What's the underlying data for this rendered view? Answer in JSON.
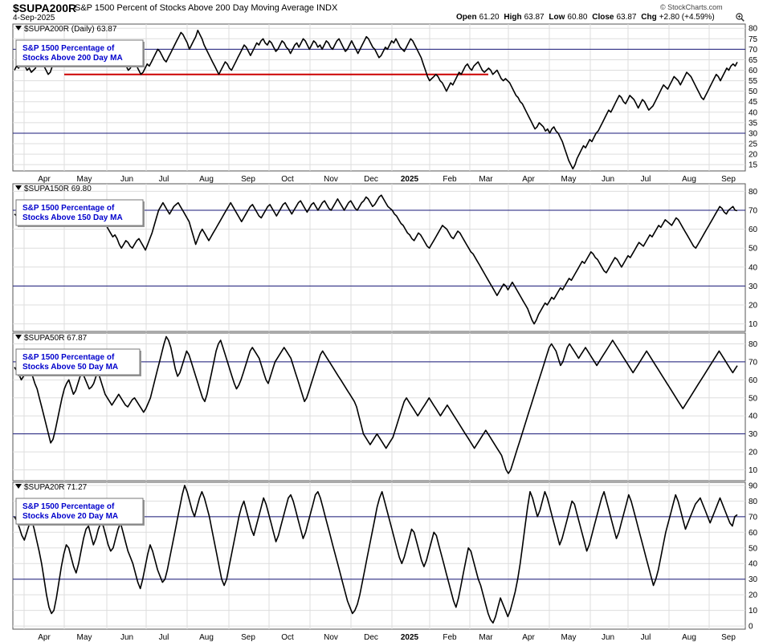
{
  "header": {
    "symbol": "$SUPA200R",
    "description": "S&P 1500 Percent of Stocks Above 200 Day Moving Average INDX",
    "date": "4-Sep-2025",
    "watermark": "© StockCharts.com",
    "open_label": "Open",
    "open": "61.20",
    "high_label": "High",
    "high": "63.87",
    "low_label": "Low",
    "low": "60.80",
    "close_label": "Close",
    "close": "63.87",
    "chg_label": "Chg",
    "chg": "+2.80 (+4.59%)",
    "zoom_icon": "magnifier-plus-icon"
  },
  "colors": {
    "line": "#000000",
    "ref": "#1a1a7a",
    "support": "#cc0000",
    "box_text": "#0000cc",
    "grid": "#dddddd"
  },
  "x_axis": {
    "labels": [
      "Apr",
      "May",
      "Jun",
      "Jul",
      "Aug",
      "Sep",
      "Oct",
      "Nov",
      "Dec",
      "2025",
      "Feb",
      "Mar",
      "Apr",
      "May",
      "Jun",
      "Jul",
      "Aug",
      "Sep"
    ],
    "bold": [
      false,
      false,
      false,
      false,
      false,
      false,
      false,
      false,
      false,
      true,
      false,
      false,
      false,
      false,
      false,
      false,
      false,
      false
    ]
  },
  "chart_data": [
    {
      "type": "line",
      "legend": "$SUPA200R (Daily) 63.87",
      "box": [
        "S&P 1500 Percentage of",
        "Stocks Above 200 Day MA"
      ],
      "ylim": [
        12,
        82
      ],
      "yticks": [
        15,
        20,
        25,
        30,
        35,
        40,
        45,
        50,
        55,
        60,
        65,
        70,
        75,
        80
      ],
      "ref_lines": [
        70,
        30
      ],
      "support_line": {
        "value": 58,
        "from": "May",
        "to": "Mar"
      },
      "y": [
        60,
        62,
        61,
        63,
        64,
        62,
        60,
        61,
        59,
        60,
        61,
        64,
        63,
        65,
        62,
        60,
        58,
        59,
        62,
        64,
        63,
        65,
        66,
        68,
        70,
        67,
        65,
        66,
        68,
        70,
        72,
        70,
        68,
        66,
        64,
        65,
        67,
        69,
        70,
        68,
        66,
        64,
        62,
        63,
        65,
        64,
        66,
        68,
        69,
        70,
        67,
        65,
        63,
        62,
        60,
        61,
        63,
        64,
        62,
        60,
        58,
        59,
        61,
        63,
        62,
        64,
        66,
        68,
        70,
        69,
        67,
        65,
        64,
        66,
        68,
        70,
        72,
        74,
        76,
        78,
        77,
        75,
        73,
        70,
        72,
        74,
        76,
        79,
        77,
        75,
        72,
        70,
        68,
        66,
        64,
        62,
        60,
        58,
        60,
        62,
        64,
        63,
        61,
        60,
        62,
        64,
        66,
        68,
        70,
        72,
        71,
        69,
        67,
        69,
        71,
        73,
        72,
        74,
        75,
        73,
        72,
        74,
        73,
        71,
        69,
        70,
        72,
        74,
        73,
        71,
        70,
        68,
        70,
        72,
        73,
        71,
        73,
        75,
        74,
        72,
        70,
        72,
        74,
        73,
        71,
        72,
        70,
        72,
        74,
        73,
        71,
        70,
        72,
        74,
        75,
        73,
        71,
        69,
        70,
        72,
        74,
        72,
        70,
        68,
        70,
        72,
        74,
        76,
        75,
        73,
        71,
        70,
        68,
        66,
        67,
        69,
        71,
        70,
        72,
        74,
        73,
        75,
        73,
        71,
        70,
        69,
        71,
        73,
        75,
        74,
        72,
        70,
        68,
        66,
        63,
        60,
        57,
        55,
        56,
        57,
        58,
        57,
        55,
        54,
        52,
        50,
        52,
        54,
        53,
        55,
        57,
        59,
        58,
        60,
        62,
        63,
        61,
        60,
        62,
        63,
        64,
        62,
        60,
        59,
        60,
        61,
        60,
        58,
        59,
        60,
        58,
        56,
        55,
        56,
        55,
        54,
        52,
        50,
        48,
        47,
        45,
        44,
        42,
        40,
        38,
        36,
        34,
        32,
        33,
        35,
        34,
        33,
        31,
        32,
        30,
        32,
        33,
        31,
        30,
        28,
        26,
        23,
        20,
        17,
        15,
        13,
        15,
        18,
        20,
        22,
        24,
        23,
        25,
        27,
        26,
        28,
        30,
        31,
        33,
        35,
        37,
        39,
        41,
        40,
        42,
        44,
        46,
        48,
        47,
        45,
        44,
        46,
        48,
        47,
        46,
        44,
        42,
        44,
        46,
        45,
        43,
        41,
        42,
        43,
        45,
        47,
        49,
        51,
        53,
        52,
        51,
        53,
        55,
        57,
        56,
        55,
        53,
        55,
        57,
        59,
        58,
        57,
        55,
        53,
        51,
        49,
        47,
        46,
        48,
        50,
        52,
        54,
        56,
        58,
        57,
        55,
        57,
        59,
        61,
        60,
        62,
        63,
        62,
        63.87
      ]
    },
    {
      "type": "line",
      "legend": "$SUPA150R 69.80",
      "box": [
        "S&P 1500 Percentage of",
        "Stocks Above 150 Day MA"
      ],
      "ylim": [
        6,
        84
      ],
      "yticks": [
        10,
        20,
        30,
        40,
        50,
        60,
        70,
        80
      ],
      "ref_lines": [
        70,
        30
      ],
      "y": [
        68,
        67,
        66,
        68,
        69,
        70,
        67,
        66,
        64,
        65,
        66,
        68,
        68,
        70,
        67,
        66,
        64,
        65,
        68,
        70,
        69,
        71,
        72,
        73,
        74,
        70,
        68,
        69,
        71,
        73,
        74,
        72,
        70,
        67,
        64,
        65,
        68,
        71,
        72,
        70,
        67,
        64,
        62,
        60,
        58,
        56,
        57,
        55,
        52,
        50,
        52,
        54,
        53,
        51,
        50,
        52,
        54,
        55,
        53,
        51,
        49,
        52,
        55,
        58,
        62,
        66,
        70,
        72,
        74,
        72,
        70,
        68,
        70,
        72,
        73,
        74,
        72,
        70,
        68,
        66,
        64,
        60,
        56,
        52,
        55,
        58,
        60,
        58,
        56,
        54,
        56,
        58,
        60,
        62,
        64,
        66,
        68,
        70,
        72,
        74,
        72,
        70,
        68,
        66,
        64,
        66,
        68,
        70,
        72,
        73,
        71,
        69,
        67,
        66,
        68,
        70,
        72,
        73,
        71,
        69,
        67,
        69,
        71,
        73,
        74,
        72,
        70,
        68,
        70,
        72,
        74,
        75,
        73,
        71,
        69,
        71,
        73,
        74,
        72,
        70,
        72,
        74,
        75,
        73,
        71,
        70,
        72,
        74,
        76,
        74,
        72,
        70,
        72,
        74,
        75,
        73,
        71,
        70,
        72,
        74,
        75,
        77,
        76,
        74,
        72,
        73,
        75,
        77,
        78,
        76,
        74,
        72,
        71,
        70,
        68,
        67,
        65,
        63,
        62,
        60,
        58,
        57,
        55,
        54,
        56,
        58,
        57,
        55,
        53,
        51,
        50,
        52,
        54,
        56,
        58,
        60,
        62,
        61,
        60,
        58,
        56,
        55,
        57,
        59,
        58,
        56,
        54,
        52,
        50,
        48,
        47,
        45,
        43,
        41,
        39,
        37,
        35,
        33,
        31,
        29,
        27,
        25,
        27,
        29,
        31,
        30,
        28,
        30,
        32,
        30,
        28,
        26,
        24,
        22,
        20,
        18,
        15,
        12,
        10,
        12,
        15,
        17,
        19,
        21,
        20,
        22,
        24,
        23,
        25,
        27,
        29,
        28,
        30,
        32,
        34,
        33,
        35,
        37,
        39,
        41,
        43,
        42,
        44,
        46,
        48,
        47,
        45,
        44,
        42,
        40,
        38,
        37,
        39,
        41,
        43,
        45,
        44,
        42,
        40,
        42,
        44,
        46,
        45,
        47,
        49,
        51,
        53,
        52,
        51,
        53,
        55,
        57,
        56,
        58,
        60,
        62,
        61,
        63,
        65,
        64,
        63,
        62,
        64,
        66,
        65,
        63,
        61,
        59,
        57,
        55,
        53,
        51,
        50,
        52,
        54,
        56,
        58,
        60,
        62,
        64,
        66,
        68,
        70,
        72,
        71,
        69,
        68,
        70,
        71,
        72,
        70,
        69.8
      ]
    },
    {
      "type": "line",
      "legend": "$SUPA50R 67.87",
      "box": [
        "S&P 1500 Percentage of",
        "Stocks Above 50 Day MA"
      ],
      "ylim": [
        4,
        86
      ],
      "yticks": [
        10,
        20,
        30,
        40,
        50,
        60,
        70,
        80
      ],
      "ref_lines": [
        70,
        30
      ],
      "y": [
        67,
        65,
        63,
        60,
        62,
        64,
        66,
        64,
        62,
        58,
        55,
        50,
        45,
        40,
        35,
        30,
        25,
        27,
        32,
        38,
        44,
        50,
        55,
        58,
        60,
        56,
        52,
        54,
        58,
        62,
        64,
        61,
        58,
        55,
        56,
        58,
        62,
        64,
        60,
        56,
        52,
        50,
        48,
        46,
        48,
        50,
        52,
        50,
        48,
        46,
        45,
        47,
        49,
        50,
        48,
        46,
        44,
        42,
        44,
        47,
        50,
        55,
        60,
        65,
        70,
        75,
        80,
        84,
        82,
        78,
        72,
        66,
        62,
        64,
        68,
        72,
        76,
        74,
        70,
        66,
        62,
        58,
        54,
        50,
        48,
        52,
        58,
        64,
        70,
        76,
        80,
        82,
        78,
        74,
        70,
        66,
        62,
        58,
        55,
        57,
        60,
        64,
        68,
        72,
        76,
        78,
        76,
        74,
        72,
        68,
        64,
        60,
        58,
        62,
        66,
        70,
        72,
        74,
        76,
        78,
        76,
        74,
        72,
        68,
        64,
        60,
        56,
        52,
        48,
        50,
        54,
        58,
        62,
        66,
        70,
        74,
        76,
        74,
        72,
        70,
        68,
        66,
        64,
        62,
        60,
        58,
        56,
        54,
        52,
        50,
        48,
        45,
        40,
        35,
        30,
        28,
        26,
        24,
        26,
        28,
        30,
        28,
        26,
        24,
        22,
        24,
        26,
        28,
        32,
        36,
        40,
        44,
        48,
        50,
        48,
        46,
        44,
        42,
        40,
        42,
        44,
        46,
        48,
        50,
        48,
        46,
        44,
        42,
        40,
        42,
        44,
        46,
        44,
        42,
        40,
        38,
        36,
        34,
        32,
        30,
        28,
        26,
        24,
        22,
        24,
        26,
        28,
        30,
        32,
        30,
        28,
        26,
        24,
        22,
        20,
        18,
        14,
        10,
        8,
        10,
        14,
        18,
        22,
        26,
        30,
        34,
        38,
        42,
        46,
        50,
        54,
        58,
        62,
        66,
        70,
        74,
        78,
        80,
        78,
        76,
        72,
        68,
        70,
        74,
        78,
        80,
        78,
        76,
        74,
        72,
        74,
        76,
        78,
        76,
        74,
        72,
        70,
        68,
        70,
        72,
        74,
        76,
        78,
        80,
        82,
        80,
        78,
        76,
        74,
        72,
        70,
        68,
        66,
        64,
        66,
        68,
        70,
        72,
        74,
        76,
        74,
        72,
        70,
        68,
        66,
        64,
        62,
        60,
        58,
        56,
        54,
        52,
        50,
        48,
        46,
        44,
        46,
        48,
        50,
        52,
        54,
        56,
        58,
        60,
        62,
        64,
        66,
        68,
        70,
        72,
        74,
        76,
        74,
        72,
        70,
        68,
        66,
        64,
        66,
        67.87
      ]
    },
    {
      "type": "line",
      "legend": "$SUPA20R 71.27",
      "box": [
        "S&P 1500 Percentage of",
        "Stocks Above 20 Day MA"
      ],
      "ylim": [
        -2,
        92
      ],
      "yticks": [
        0,
        10,
        20,
        30,
        40,
        50,
        60,
        70,
        80,
        90
      ],
      "ref_lines": [
        70,
        30
      ],
      "y": [
        70,
        67,
        63,
        58,
        55,
        60,
        65,
        68,
        62,
        55,
        48,
        40,
        30,
        20,
        12,
        8,
        10,
        18,
        28,
        38,
        46,
        52,
        50,
        44,
        38,
        34,
        40,
        48,
        56,
        62,
        64,
        58,
        52,
        56,
        62,
        66,
        64,
        58,
        52,
        48,
        50,
        56,
        62,
        66,
        60,
        54,
        48,
        44,
        40,
        34,
        28,
        24,
        30,
        38,
        46,
        52,
        48,
        42,
        36,
        32,
        28,
        30,
        36,
        44,
        52,
        60,
        68,
        76,
        84,
        90,
        86,
        80,
        74,
        70,
        76,
        82,
        86,
        82,
        76,
        70,
        62,
        54,
        46,
        38,
        30,
        26,
        30,
        38,
        46,
        54,
        62,
        70,
        76,
        80,
        74,
        68,
        62,
        58,
        64,
        70,
        76,
        82,
        78,
        72,
        66,
        60,
        54,
        58,
        64,
        70,
        76,
        82,
        84,
        80,
        74,
        68,
        62,
        56,
        60,
        66,
        72,
        78,
        84,
        86,
        82,
        76,
        70,
        64,
        58,
        52,
        46,
        40,
        34,
        28,
        22,
        16,
        12,
        8,
        10,
        14,
        20,
        28,
        36,
        44,
        52,
        60,
        68,
        76,
        82,
        86,
        80,
        74,
        68,
        62,
        56,
        50,
        44,
        40,
        44,
        50,
        56,
        62,
        60,
        54,
        48,
        42,
        38,
        42,
        48,
        54,
        60,
        58,
        52,
        46,
        40,
        34,
        28,
        22,
        16,
        12,
        18,
        26,
        34,
        42,
        50,
        48,
        42,
        36,
        30,
        26,
        20,
        14,
        8,
        4,
        2,
        6,
        12,
        18,
        14,
        10,
        6,
        10,
        16,
        22,
        30,
        40,
        52,
        64,
        76,
        86,
        82,
        76,
        70,
        74,
        80,
        86,
        82,
        76,
        70,
        64,
        58,
        52,
        56,
        62,
        68,
        74,
        80,
        78,
        72,
        66,
        60,
        54,
        48,
        52,
        58,
        64,
        70,
        76,
        82,
        86,
        80,
        74,
        68,
        62,
        56,
        60,
        66,
        72,
        78,
        84,
        80,
        74,
        68,
        62,
        56,
        50,
        44,
        38,
        32,
        26,
        30,
        36,
        44,
        52,
        60,
        66,
        72,
        78,
        84,
        80,
        74,
        68,
        62,
        66,
        70,
        74,
        78,
        80,
        82,
        78,
        74,
        70,
        66,
        70,
        74,
        78,
        82,
        78,
        74,
        70,
        66,
        64,
        70,
        71.27
      ]
    }
  ]
}
